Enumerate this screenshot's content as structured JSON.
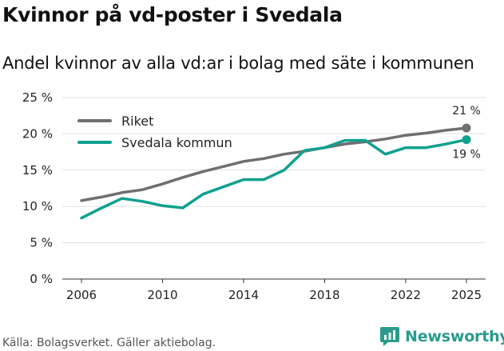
{
  "header": {
    "title": "Kvinnor på vd-poster i Svedala",
    "subtitle": "Andel kvinnor av alla vd:ar i bolag med säte i kommunen"
  },
  "footer": {
    "source": "Källa: Bolagsverket. Gäller aktiebolag.",
    "brand": "Newsworthy",
    "brand_color": "#2b9b8c"
  },
  "chart_data": {
    "type": "line",
    "title": "Kvinnor på vd-poster i Svedala",
    "subtitle": "Andel kvinnor av alla vd:ar i bolag med säte i kommunen",
    "xlabel": "",
    "ylabel": "",
    "xlim": [
      2006,
      2025
    ],
    "ylim": [
      0,
      25
    ],
    "x_ticks": [
      2006,
      2010,
      2014,
      2018,
      2022,
      2025
    ],
    "x_tick_labels": [
      "2006",
      "2010",
      "2014",
      "2018",
      "2022",
      "2025"
    ],
    "y_ticks": [
      0,
      5,
      10,
      15,
      20,
      25
    ],
    "y_tick_labels": [
      "0 %",
      "5 %",
      "10 %",
      "15 %",
      "20 %",
      "25 %"
    ],
    "grid": "horizontal",
    "legend_position": "top-left",
    "x": [
      2006,
      2007,
      2008,
      2009,
      2010,
      2011,
      2012,
      2013,
      2014,
      2015,
      2016,
      2017,
      2018,
      2019,
      2020,
      2021,
      2022,
      2023,
      2024,
      2025
    ],
    "series": [
      {
        "name": "Riket",
        "color": "#6f6e73",
        "values": [
          10.8,
          11.3,
          11.9,
          12.3,
          13.1,
          14.0,
          14.8,
          15.5,
          16.2,
          16.6,
          17.2,
          17.6,
          18.1,
          18.6,
          18.9,
          19.3,
          19.8,
          20.1,
          20.5,
          20.8
        ],
        "end_label": "21 %"
      },
      {
        "name": "Svedala kommun",
        "color": "#0fa08f",
        "values": [
          8.4,
          9.8,
          11.1,
          10.7,
          10.1,
          9.8,
          11.7,
          12.7,
          13.7,
          13.7,
          15.0,
          17.7,
          18.1,
          19.1,
          19.1,
          17.2,
          18.1,
          18.1,
          18.6,
          19.2
        ],
        "end_label": "19 %"
      }
    ]
  }
}
